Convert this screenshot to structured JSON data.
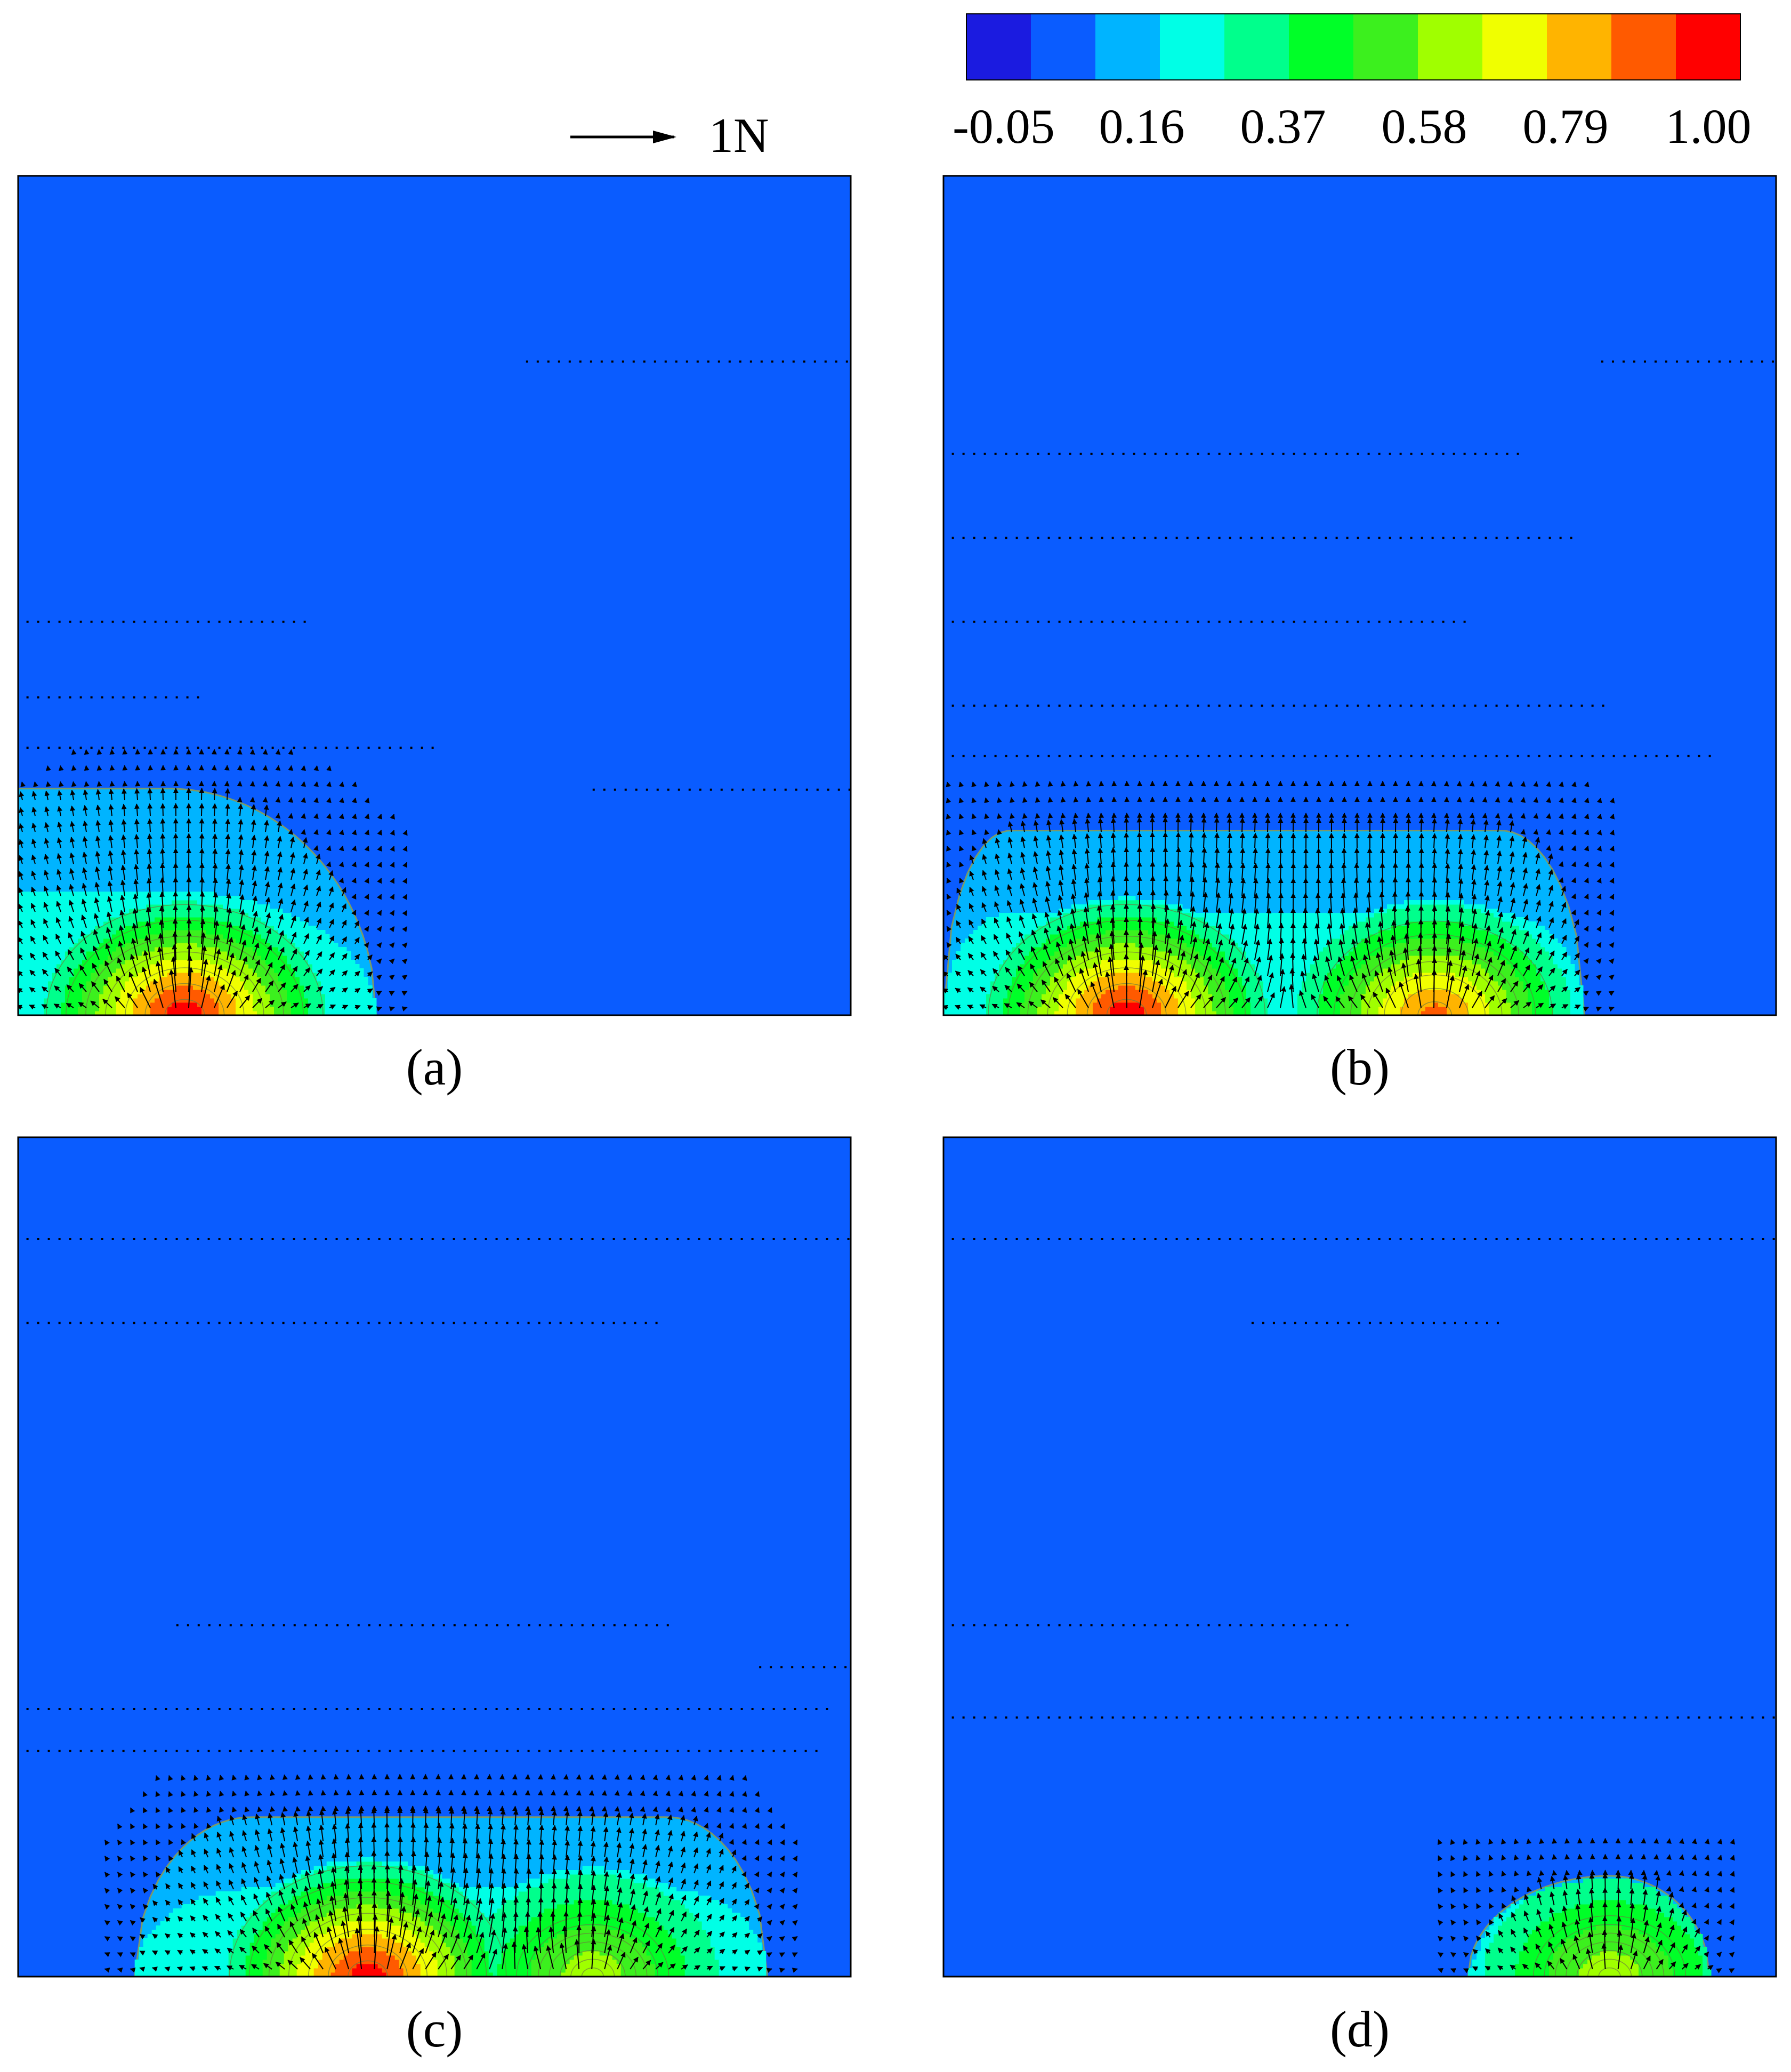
{
  "chart_data": {
    "type": "heatmap",
    "description_free": true,
    "colorbar": {
      "colors": [
        "#1b1be0",
        "#0a5cff",
        "#00b4ff",
        "#00ffe6",
        "#00ff8c",
        "#00ff28",
        "#3cf01e",
        "#a0ff00",
        "#f0ff00",
        "#ffb400",
        "#ff5a00",
        "#ff0000"
      ],
      "tick_labels": [
        "-0.05",
        "0.16",
        "0.37",
        "0.58",
        "0.79",
        "1.00"
      ],
      "range": [
        -0.05,
        1.0
      ]
    },
    "scale_arrow": {
      "label": "1N",
      "value": 1
    },
    "background_color": "#0a5cff",
    "panels": [
      {
        "label": "(a)",
        "sources": [
          {
            "x": 0.2,
            "amplitude": 1.0
          }
        ],
        "plume": {
          "x_start": 0.0,
          "x_end": 0.43,
          "height": 0.27,
          "flat_from": 0.0,
          "flat_to": 0.18
        },
        "dot_rows_top": [
          {
            "y": 0.78,
            "x_from": 0.61,
            "x_to": 1.0
          },
          {
            "y": 0.47,
            "x_from": 0.01,
            "x_to": 0.35
          },
          {
            "y": 0.38,
            "x_from": 0.01,
            "x_to": 0.22
          },
          {
            "y": 0.32,
            "x_from": 0.01,
            "x_to": 0.5
          },
          {
            "y": 0.27,
            "x_from": 0.69,
            "x_to": 1.0
          }
        ]
      },
      {
        "label": "(b)",
        "sources": [
          {
            "x": 0.22,
            "amplitude": 1.0
          },
          {
            "x": 0.59,
            "amplitude": 0.85
          }
        ],
        "plume": {
          "x_start": 0.0,
          "x_end": 0.77,
          "height": 0.22,
          "flat_from": 0.08,
          "flat_to": 0.67
        },
        "dot_rows_top": [
          {
            "y": 0.78,
            "x_from": 0.79,
            "x_to": 1.0
          },
          {
            "y": 0.67,
            "x_from": 0.01,
            "x_to": 0.7
          },
          {
            "y": 0.57,
            "x_from": 0.01,
            "x_to": 0.76
          },
          {
            "y": 0.47,
            "x_from": 0.01,
            "x_to": 0.63
          },
          {
            "y": 0.37,
            "x_from": 0.01,
            "x_to": 0.8
          },
          {
            "y": 0.31,
            "x_from": 0.01,
            "x_to": 0.92
          }
        ]
      },
      {
        "label": "(c)",
        "sources": [
          {
            "x": 0.42,
            "amplitude": 1.0
          },
          {
            "x": 0.69,
            "amplitude": 0.55
          }
        ],
        "plume": {
          "x_start": 0.14,
          "x_end": 0.9,
          "height": 0.19,
          "flat_from": 0.28,
          "flat_to": 0.78
        },
        "dot_rows_top": [
          {
            "y": 0.88,
            "x_from": 0.01,
            "x_to": 1.0
          },
          {
            "y": 0.78,
            "x_from": 0.01,
            "x_to": 0.77
          },
          {
            "y": 0.42,
            "x_from": 0.19,
            "x_to": 0.78
          },
          {
            "y": 0.37,
            "x_from": 0.89,
            "x_to": 1.0
          },
          {
            "y": 0.32,
            "x_from": 0.01,
            "x_to": 0.98
          },
          {
            "y": 0.27,
            "x_from": 0.01,
            "x_to": 0.96
          }
        ]
      },
      {
        "label": "(d)",
        "sources": [
          {
            "x": 0.8,
            "amplitude": 0.55
          }
        ],
        "plume": {
          "x_start": 0.63,
          "x_end": 0.92,
          "height": 0.12,
          "flat_from": 0.8,
          "flat_to": 0.8
        },
        "dot_rows_top": [
          {
            "y": 0.88,
            "x_from": 0.01,
            "x_to": 1.0
          },
          {
            "y": 0.78,
            "x_from": 0.37,
            "x_to": 0.67
          },
          {
            "y": 0.42,
            "x_from": 0.01,
            "x_to": 0.49
          },
          {
            "y": 0.31,
            "x_from": 0.01,
            "x_to": 1.0
          }
        ]
      }
    ]
  }
}
